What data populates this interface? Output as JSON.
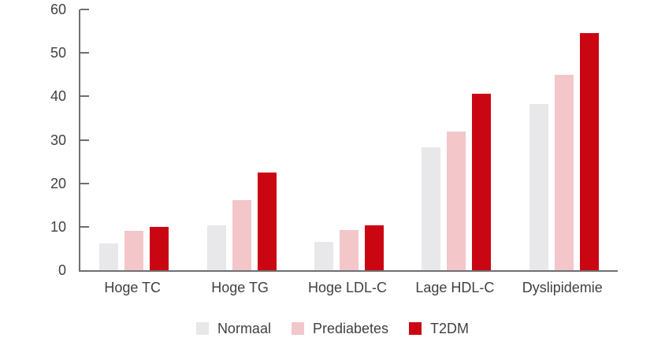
{
  "chart_data": {
    "type": "bar",
    "title": "",
    "xlabel": "",
    "ylabel": "",
    "categories": [
      "Hoge TC",
      "Hoge TG",
      "Hoge LDL-C",
      "Lage HDL-C",
      "Dyslipidemie"
    ],
    "series": [
      {
        "name": "Normaal",
        "color": "#e8e7e9",
        "values": [
          6.2,
          10.4,
          6.6,
          28.2,
          38.2
        ]
      },
      {
        "name": "Prediabetes",
        "color": "#f3c6ca",
        "values": [
          9.0,
          16.1,
          9.2,
          31.9,
          44.9
        ]
      },
      {
        "name": "T2DM",
        "color": "#cb0613",
        "values": [
          10.0,
          22.4,
          10.3,
          40.6,
          54.6
        ]
      }
    ],
    "ylim": [
      0,
      60
    ],
    "yticks": [
      0,
      10,
      20,
      30,
      40,
      50,
      60
    ],
    "grid": false,
    "legend_position": "bottom-center"
  },
  "colors": {
    "axis": "#6e6f72",
    "text": "#414042",
    "background": "#ffffff"
  }
}
